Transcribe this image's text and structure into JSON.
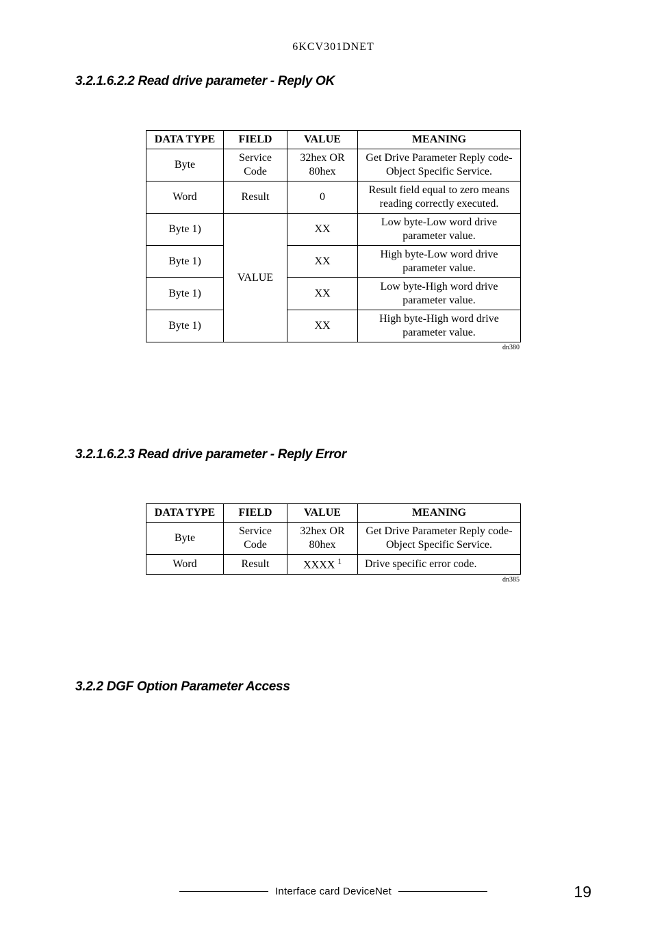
{
  "header": "6KCV301DNET",
  "section1": {
    "heading": "3.2.1.6.2.2 Read drive parameter - Reply OK",
    "caption": "dn380",
    "columns": [
      "DATA TYPE",
      "FIELD",
      "VALUE",
      "MEANING"
    ],
    "rows": [
      {
        "dt": "Byte",
        "fld": "Service Code",
        "val": "32hex OR 80hex",
        "mn": "Get Drive Parameter Reply code- Object Specific Service."
      },
      {
        "dt": "Word",
        "fld": "Result",
        "val": "0",
        "mn": "Result field equal to zero means reading correctly executed."
      },
      {
        "dt": "Byte 1)",
        "fld": "VALUE",
        "val": "XX",
        "mn": "Low byte-Low word drive parameter value."
      },
      {
        "dt": "Byte 1)",
        "val": "XX",
        "mn": "High byte-Low word drive parameter value."
      },
      {
        "dt": "Byte 1)",
        "val": "XX",
        "mn": "Low byte-High word drive parameter value."
      },
      {
        "dt": "Byte 1)",
        "val": "XX",
        "mn": "High byte-High word drive parameter value."
      }
    ]
  },
  "section2": {
    "heading": "3.2.1.6.2.3 Read drive parameter - Reply Error",
    "caption": "dn385",
    "columns": [
      "DATA TYPE",
      "FIELD",
      "VALUE",
      "MEANING"
    ],
    "rows": [
      {
        "dt": "Byte",
        "fld": "Service Code",
        "val": "32hex OR 80hex",
        "mn": "Get Drive Parameter Reply code- Object Specific Service."
      },
      {
        "dt": "Word",
        "fld": "Result",
        "val_html": "XXXX <sup>1</sup>",
        "mn": "Drive specific error code."
      }
    ]
  },
  "section3": {
    "heading": "3.2.2 DGF Option Parameter Access"
  },
  "footer": {
    "text": "Interface card DeviceNet",
    "page": "19"
  },
  "style": {
    "col_widths": {
      "dt": 100,
      "fld": 80,
      "val": 90,
      "mn": 225
    },
    "fonts": {
      "heading_family": "Arial",
      "body_family": "Times New Roman"
    },
    "heading_fontsize_pt": 14,
    "body_fontsize_pt": 12,
    "colors": {
      "text": "#000000",
      "border": "#000000",
      "bg": "#ffffff"
    }
  }
}
